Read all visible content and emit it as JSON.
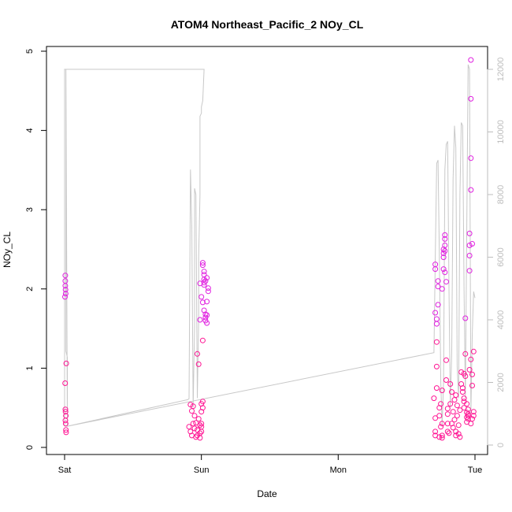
{
  "chart_data": {
    "type": "scatter",
    "title": "ATOM4 Northeast_Pacific_2 NOy_CL",
    "xlabel": "Date",
    "ylabel": "NOy_CL",
    "x_ticks": [
      "Sat",
      "Sun",
      "Mon",
      "Tue"
    ],
    "x_tick_days": [
      0,
      1,
      2,
      3
    ],
    "xlim_days": [
      -0.18,
      3.14
    ],
    "ylim": [
      0,
      5
    ],
    "y_ticks": [
      0,
      1,
      2,
      3,
      4,
      5
    ],
    "y2lim": [
      0,
      12500
    ],
    "y2_ticks": [
      0,
      2000,
      4000,
      6000,
      8000,
      10000,
      12000
    ],
    "grid": false,
    "colors": {
      "points": "#ff1493",
      "points_alt": "#e020e0",
      "altitude_line": "#c8c8c8",
      "right_axis": "#bdbdbd",
      "frame": "#000000"
    },
    "series": [
      {
        "role": "points",
        "values": [
          [
            0.005,
            2.17
          ],
          [
            0.005,
            2.1
          ],
          [
            0.005,
            2.04
          ],
          [
            0.007,
            1.99
          ],
          [
            0.003,
            1.9
          ],
          [
            0.008,
            1.94
          ],
          [
            0.012,
            1.06
          ],
          [
            0.004,
            0.81
          ],
          [
            0.006,
            0.48
          ],
          [
            0.007,
            0.45
          ],
          [
            0.009,
            0.4
          ],
          [
            0.006,
            0.34
          ],
          [
            0.008,
            0.3
          ],
          [
            0.01,
            0.22
          ],
          [
            0.011,
            0.19
          ],
          [
            0.92,
            0.54
          ],
          [
            0.91,
            0.26
          ],
          [
            0.92,
            0.2
          ],
          [
            0.93,
            0.15
          ],
          [
            0.94,
            0.3
          ],
          [
            0.95,
            0.24
          ],
          [
            0.96,
            0.13
          ],
          [
            0.93,
            0.46
          ],
          [
            0.94,
            0.52
          ],
          [
            0.95,
            0.4
          ],
          [
            0.96,
            0.31
          ],
          [
            0.97,
            0.22
          ],
          [
            0.97,
            0.15
          ],
          [
            0.97,
            1.18
          ],
          [
            0.98,
            1.05
          ],
          [
            0.98,
            0.36
          ],
          [
            0.99,
            0.28
          ],
          [
            0.99,
            0.18
          ],
          [
            0.99,
            0.12
          ],
          [
            0.99,
            1.61
          ],
          [
            1.0,
            0.55
          ],
          [
            1.0,
            0.45
          ],
          [
            1.0,
            0.3
          ],
          [
            1.0,
            0.26
          ],
          [
            1.0,
            0.2
          ],
          [
            0.99,
            2.07
          ],
          [
            1.0,
            1.9
          ],
          [
            1.01,
            1.83
          ],
          [
            1.01,
            1.35
          ],
          [
            1.01,
            0.58
          ],
          [
            1.01,
            0.5
          ],
          [
            1.01,
            2.33
          ],
          [
            1.01,
            2.3
          ],
          [
            1.02,
            2.22
          ],
          [
            1.02,
            2.18
          ],
          [
            1.02,
            2.12
          ],
          [
            1.02,
            2.08
          ],
          [
            1.02,
            1.73
          ],
          [
            1.03,
            1.68
          ],
          [
            1.03,
            1.64
          ],
          [
            1.03,
            1.6
          ],
          [
            1.04,
            1.57
          ],
          [
            1.04,
            1.67
          ],
          [
            1.02,
            2.05
          ],
          [
            1.03,
            2.1
          ],
          [
            1.04,
            2.14
          ],
          [
            1.05,
            2.01
          ],
          [
            1.05,
            1.97
          ],
          [
            1.04,
            1.84
          ],
          [
            2.7,
            0.62
          ],
          [
            2.71,
            0.37
          ],
          [
            2.71,
            0.2
          ],
          [
            2.71,
            0.15
          ],
          [
            2.71,
            2.31
          ],
          [
            2.71,
            2.25
          ],
          [
            2.71,
            1.7
          ],
          [
            2.72,
            1.62
          ],
          [
            2.72,
            1.56
          ],
          [
            2.72,
            1.33
          ],
          [
            2.72,
            1.02
          ],
          [
            2.72,
            0.75
          ],
          [
            2.73,
            1.8
          ],
          [
            2.73,
            2.1
          ],
          [
            2.73,
            2.03
          ],
          [
            2.74,
            0.5
          ],
          [
            2.74,
            0.13
          ],
          [
            2.74,
            0.4
          ],
          [
            2.75,
            0.55
          ],
          [
            2.75,
            0.26
          ],
          [
            2.76,
            0.15
          ],
          [
            2.76,
            0.12
          ],
          [
            2.76,
            0.3
          ],
          [
            2.76,
            0.72
          ],
          [
            2.76,
            2.0
          ],
          [
            2.77,
            2.25
          ],
          [
            2.77,
            2.4
          ],
          [
            2.77,
            2.45
          ],
          [
            2.77,
            2.5
          ],
          [
            2.78,
            2.55
          ],
          [
            2.78,
            2.63
          ],
          [
            2.78,
            2.68
          ],
          [
            2.78,
            2.48
          ],
          [
            2.78,
            2.21
          ],
          [
            2.79,
            2.09
          ],
          [
            2.79,
            0.85
          ],
          [
            2.79,
            1.1
          ],
          [
            2.8,
            0.49
          ],
          [
            2.8,
            0.42
          ],
          [
            2.8,
            0.3
          ],
          [
            2.8,
            0.2
          ],
          [
            2.81,
            0.18
          ],
          [
            2.82,
            0.55
          ],
          [
            2.82,
            0.8
          ],
          [
            2.83,
            0.7
          ],
          [
            2.83,
            0.3
          ],
          [
            2.84,
            0.45
          ],
          [
            2.84,
            0.25
          ],
          [
            2.85,
            0.6
          ],
          [
            2.85,
            0.35
          ],
          [
            2.86,
            0.2
          ],
          [
            2.86,
            0.15
          ],
          [
            2.86,
            0.66
          ],
          [
            2.87,
            0.53
          ],
          [
            2.87,
            0.4
          ],
          [
            2.88,
            0.28
          ],
          [
            2.88,
            0.17
          ],
          [
            2.89,
            0.13
          ],
          [
            2.89,
            0.47
          ],
          [
            2.9,
            0.95
          ],
          [
            2.9,
            0.8
          ],
          [
            2.91,
            0.75
          ],
          [
            2.91,
            0.7
          ],
          [
            2.92,
            0.62
          ],
          [
            2.92,
            0.58
          ],
          [
            2.92,
            0.5
          ],
          [
            2.92,
            0.93
          ],
          [
            2.93,
            1.18
          ],
          [
            2.93,
            1.63
          ],
          [
            2.93,
            0.9
          ],
          [
            2.94,
            0.44
          ],
          [
            2.94,
            0.38
          ],
          [
            2.94,
            0.32
          ],
          [
            2.95,
            0.42
          ],
          [
            2.95,
            0.48
          ],
          [
            2.95,
            0.36
          ],
          [
            2.95,
            0.4
          ],
          [
            2.96,
            2.55
          ],
          [
            2.96,
            2.42
          ],
          [
            2.96,
            2.23
          ],
          [
            2.96,
            2.7
          ],
          [
            2.97,
            3.25
          ],
          [
            2.97,
            3.65
          ],
          [
            2.97,
            4.4
          ],
          [
            2.97,
            4.89
          ],
          [
            2.97,
            1.11
          ],
          [
            2.98,
            0.92
          ],
          [
            2.98,
            0.36
          ],
          [
            2.98,
            2.57
          ],
          [
            2.99,
            1.21
          ],
          [
            2.99,
            0.45
          ],
          [
            2.99,
            0.4
          ],
          [
            2.98,
            0.78
          ],
          [
            2.97,
            0.3
          ],
          [
            2.96,
            0.98
          ],
          [
            2.94,
            0.55
          ]
        ]
      }
    ],
    "altitude_line": [
      [
        0.0,
        600
      ],
      [
        0.0,
        12000
      ],
      [
        0.01,
        12000
      ],
      [
        0.01,
        3000
      ],
      [
        0.02,
        2800
      ],
      [
        0.02,
        600
      ],
      [
        0.0,
        600
      ],
      [
        0.02,
        600
      ],
      [
        0.9,
        1450
      ],
      [
        0.91,
        1480
      ],
      [
        0.92,
        8800
      ],
      [
        0.93,
        7000
      ],
      [
        0.94,
        1200
      ],
      [
        0.95,
        3800
      ],
      [
        0.95,
        8200
      ],
      [
        0.96,
        8000
      ],
      [
        0.97,
        1500
      ],
      [
        0.98,
        4000
      ],
      [
        0.98,
        6000
      ],
      [
        0.99,
        8000
      ],
      [
        0.99,
        10500
      ],
      [
        1.0,
        10600
      ],
      [
        1.0,
        10800
      ],
      [
        1.01,
        11000
      ],
      [
        1.02,
        12000
      ],
      [
        1.0,
        12000
      ],
      [
        0.01,
        12000
      ],
      [
        0.02,
        600
      ],
      [
        2.7,
        2950
      ],
      [
        2.71,
        6000
      ],
      [
        2.72,
        9000
      ],
      [
        2.73,
        9100
      ],
      [
        2.74,
        6000
      ],
      [
        2.75,
        2000
      ],
      [
        2.76,
        600
      ],
      [
        2.77,
        2000
      ],
      [
        2.78,
        8800
      ],
      [
        2.79,
        9600
      ],
      [
        2.8,
        9700
      ],
      [
        2.81,
        5000
      ],
      [
        2.82,
        1200
      ],
      [
        2.83,
        3000
      ],
      [
        2.84,
        8500
      ],
      [
        2.85,
        10200
      ],
      [
        2.86,
        9500
      ],
      [
        2.87,
        2500
      ],
      [
        2.88,
        1500
      ],
      [
        2.89,
        8000
      ],
      [
        2.9,
        10300
      ],
      [
        2.91,
        10200
      ],
      [
        2.92,
        5000
      ],
      [
        2.93,
        1500
      ],
      [
        2.94,
        7000
      ],
      [
        2.95,
        12150
      ],
      [
        2.96,
        12000
      ],
      [
        2.97,
        1000
      ],
      [
        2.98,
        3500
      ],
      [
        2.99,
        4900
      ],
      [
        3.0,
        4700
      ]
    ]
  }
}
